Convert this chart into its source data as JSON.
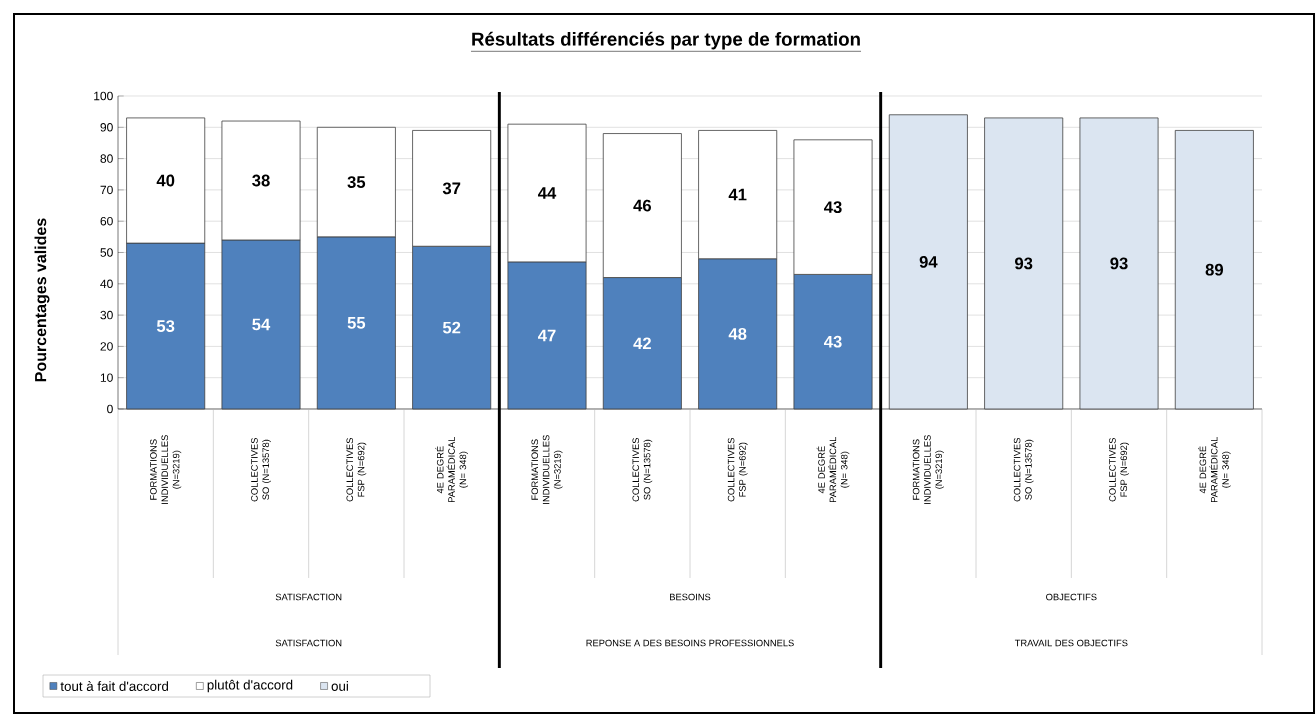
{
  "chart_data": {
    "type": "bar",
    "stacked": true,
    "title": "Résultats différenciés par type de formation",
    "ylabel": "Pourcentages  valides",
    "categories": [
      "FORMATIONS INDIVIDUELLES (N=3219)",
      "COLLECTIVES SO (N=13578)",
      "COLLECTIVES FSP (N=692)",
      "4E DEGRÉ PARAMÉDICAL (N= 348)",
      "FORMATIONS INDIVIDUELLES (N=3219)",
      "COLLECTIVES SO (N=13578)",
      "COLLECTIVES FSP (N=692)",
      "4E DEGRÉ PARAMÉDICAL (N= 348)",
      "FORMATIONS INDIVIDUELLES (N=3219)",
      "COLLECTIVES SO (N=13578)",
      "COLLECTIVES FSP (N=692)",
      "4E DEGRÉ PARAMÉDICAL (N= 348)"
    ],
    "series": [
      {
        "name": "tout à fait d'accord",
        "color": "#4f81bd",
        "values": [
          53,
          54,
          55,
          52,
          47,
          42,
          48,
          43,
          null,
          null,
          null,
          null
        ]
      },
      {
        "name": "plutôt d'accord",
        "color": "#ffffff",
        "values": [
          40,
          38,
          35,
          37,
          44,
          46,
          41,
          43,
          null,
          null,
          null,
          null
        ]
      },
      {
        "name": "oui",
        "color": "#dbe5f1",
        "values": [
          null,
          null,
          null,
          null,
          null,
          null,
          null,
          null,
          94,
          93,
          93,
          89
        ]
      }
    ],
    "annotations": [
      "SATISFACTION",
      "BESOINS",
      "OBJECTIFS",
      "SATISFACTION",
      "REPONSE A DES BESOINS PROFESSIONNELS",
      "TRAVAIL DES OBJECTIFS"
    ],
    "ylim": [
      0,
      100
    ],
    "yticks": [
      0,
      10,
      20,
      30,
      40,
      50,
      60,
      70,
      80,
      90,
      100
    ],
    "grid": "y",
    "legend": "bottom left",
    "data_labels": true
  }
}
